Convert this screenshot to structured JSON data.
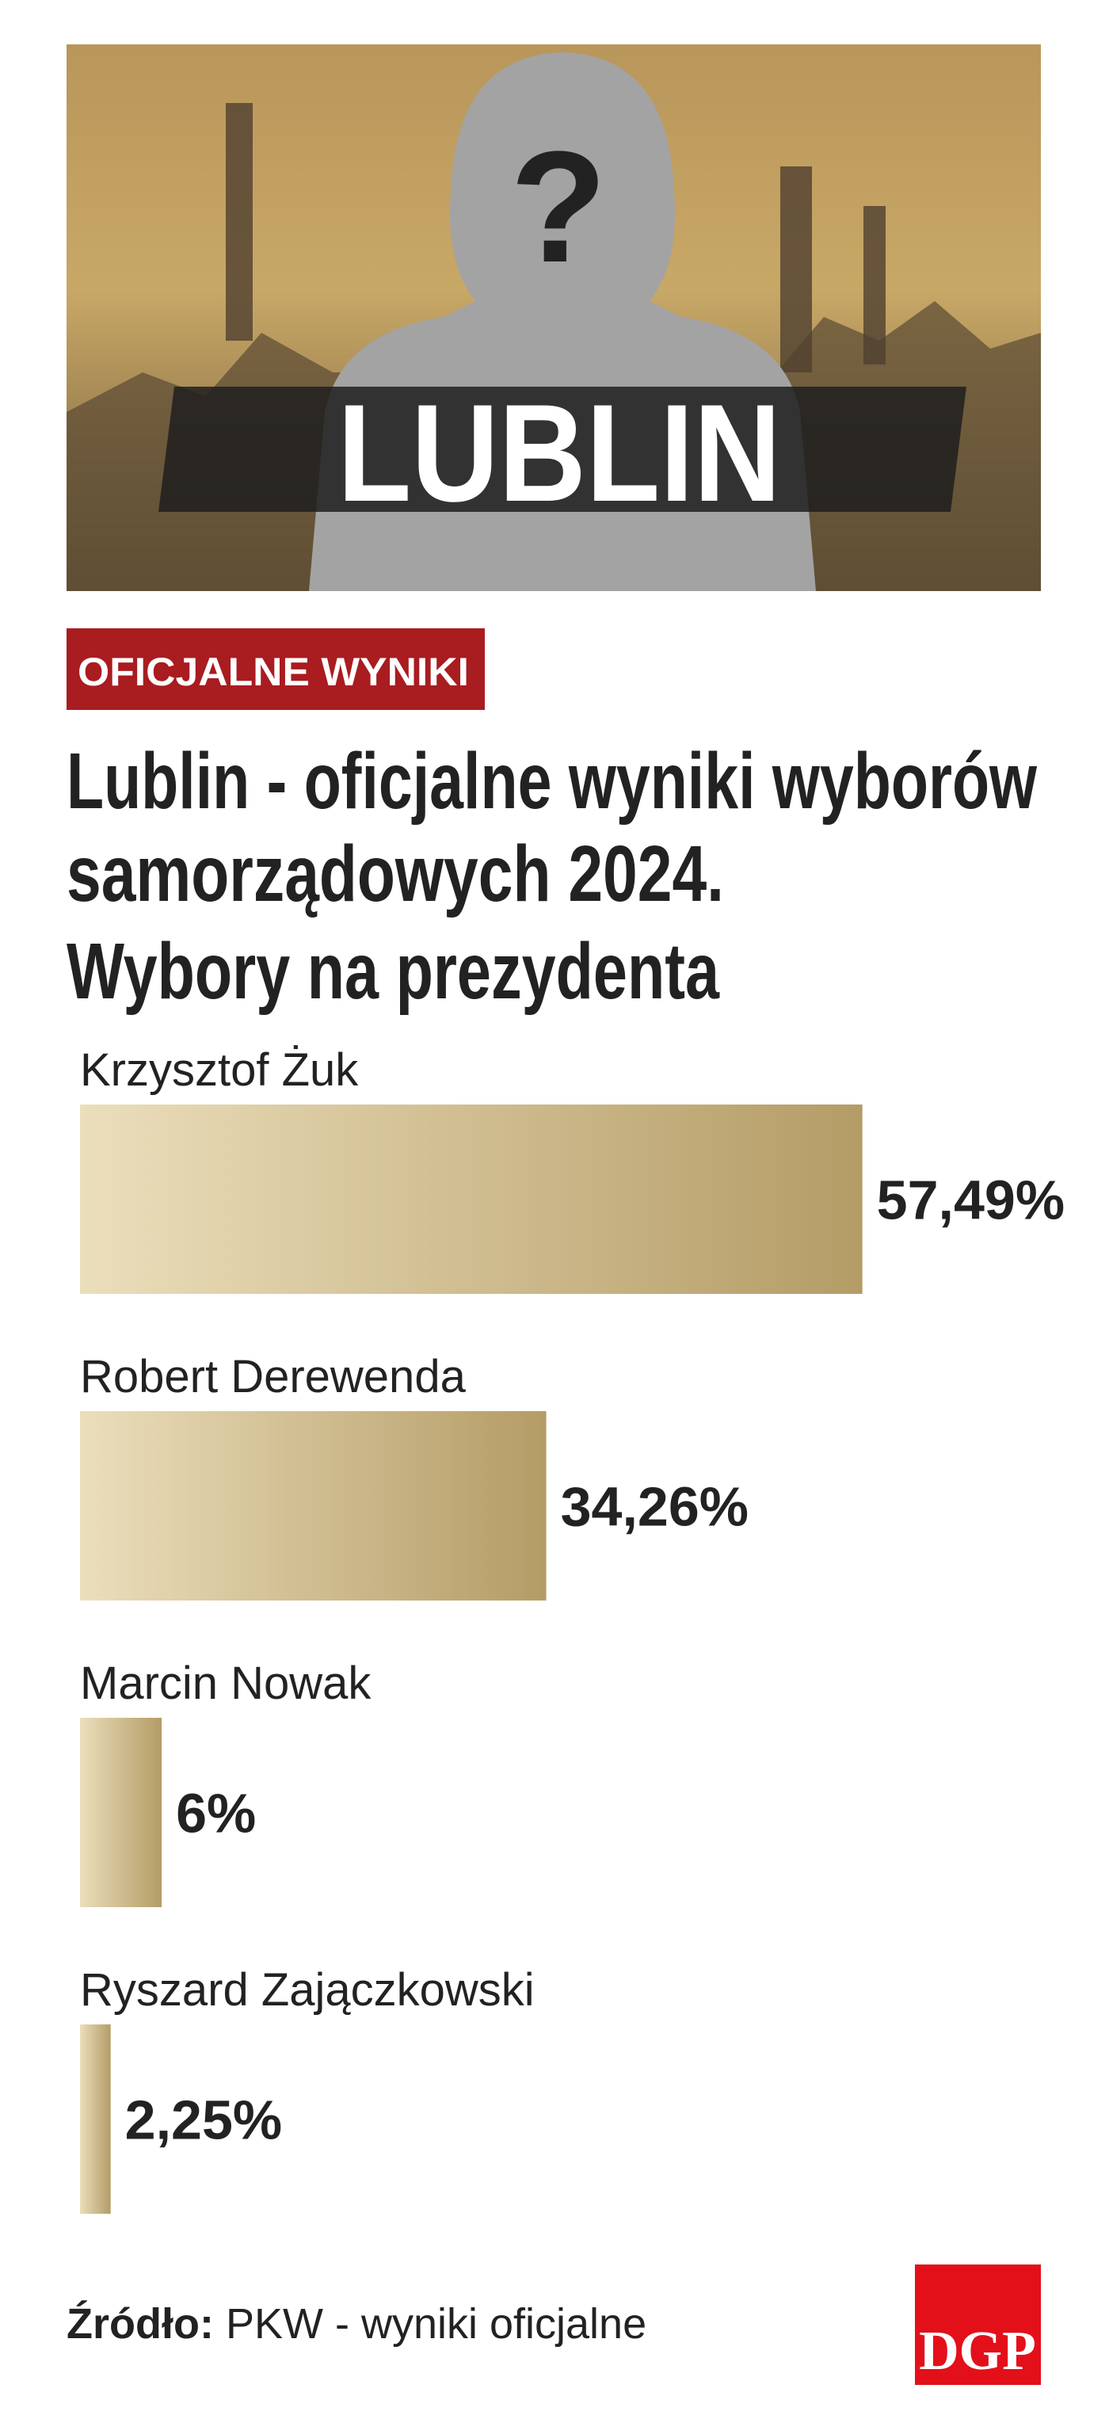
{
  "header": {
    "image_symbol": "?",
    "image_label": "LUBLIN"
  },
  "badge": "OFICJALNE WYNIKI",
  "title_lines": [
    "Lublin - oficjalne wyniki wyborów",
    "samorządowych 2024.",
    "Wybory na prezydenta"
  ],
  "chart_data": {
    "type": "bar",
    "orientation": "horizontal",
    "categories": [
      "Krzysztof Żuk",
      "Robert Derewenda",
      "Marcin Nowak",
      "Ryszard Zajączkowski"
    ],
    "values": [
      57.49,
      34.26,
      6,
      2.25
    ],
    "value_labels": [
      "57,49%",
      "34,26%",
      "6%",
      "2,25%"
    ],
    "gradient": [
      "#ebdebb",
      "#b49c66"
    ]
  },
  "source": {
    "label": "Źródło:",
    "text": "PKW - wyniki oficjalne"
  },
  "logo": "DGP"
}
